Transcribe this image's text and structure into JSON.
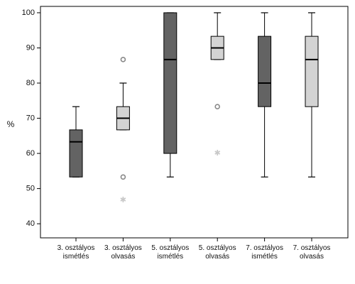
{
  "chart_data": {
    "type": "boxplot",
    "title": "",
    "xlabel": "",
    "ylabel": "%",
    "ylim": [
      37,
      101
    ],
    "yticks": [
      40,
      50,
      60,
      70,
      80,
      90,
      100
    ],
    "grid": false,
    "colors": {
      "dark_box": "#636363",
      "light_box": "#d3d3d3",
      "outline": "#000000",
      "outlier": "#8a8a8a",
      "extreme": "#c8c8c8"
    },
    "categories": [
      {
        "line1": "3. osztályos",
        "line2": "ismétlés",
        "shade": "dark",
        "whisker_low": 53.3,
        "q1": 53.3,
        "median": 63.3,
        "q3": 66.7,
        "whisker_high": 73.3,
        "outliers": [],
        "extremes": []
      },
      {
        "line1": "3. osztályos",
        "line2": "olvasás",
        "shade": "light",
        "whisker_low": 66.7,
        "q1": 66.7,
        "median": 70,
        "q3": 73.3,
        "whisker_high": 80,
        "outliers": [
          86.7,
          53.3
        ],
        "extremes": [
          46.7
        ]
      },
      {
        "line1": "5. osztályos",
        "line2": "ismétlés",
        "shade": "dark",
        "whisker_low": 53.3,
        "q1": 60,
        "median": 86.7,
        "q3": 100,
        "whisker_high": 100,
        "outliers": [],
        "extremes": []
      },
      {
        "line1": "5. osztályos",
        "line2": "olvasás",
        "shade": "light",
        "whisker_low": 86.7,
        "q1": 86.7,
        "median": 90,
        "q3": 93.3,
        "whisker_high": 100,
        "outliers": [
          73.3
        ],
        "extremes": [
          60
        ]
      },
      {
        "line1": "7. osztályos",
        "line2": "ismétlés",
        "shade": "dark",
        "whisker_low": 53.3,
        "q1": 73.3,
        "median": 80,
        "q3": 93.3,
        "whisker_high": 100,
        "outliers": [],
        "extremes": []
      },
      {
        "line1": "7. osztályos",
        "line2": "olvasás",
        "shade": "light",
        "whisker_low": 53.3,
        "q1": 73.3,
        "median": 86.7,
        "q3": 93.3,
        "whisker_high": 100,
        "outliers": [],
        "extremes": []
      }
    ]
  }
}
